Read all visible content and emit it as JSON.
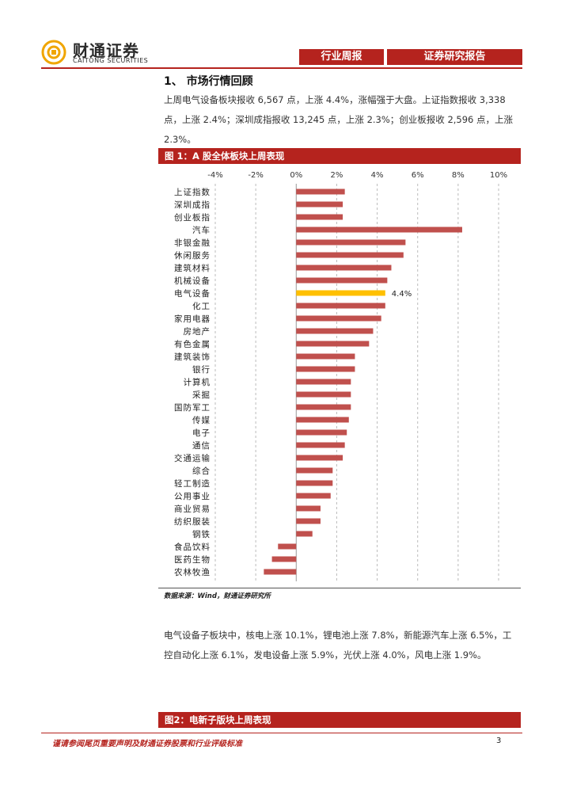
{
  "header": {
    "brand_cn": "财通证券",
    "brand_en": "CAITONG SECURITIES",
    "tab_weekly": "行业周报",
    "tab_report": "证券研究报告"
  },
  "section": {
    "title": "1、 市场行情回顾",
    "para1": "上周电气设备板块报收 6,567 点，上涨 4.4%，涨幅强于大盘。上证指数报收 3,338 点，上涨 2.4%；深圳成指报收 13,245 点，上涨 2.3%；创业板报收 2,596 点，上涨 2.3%。",
    "para2": "电气设备子板块中，核电上涨 10.1%，锂电池上涨 7.8%，新能源汽车上涨 6.5%，工控自动化上涨 6.1%，发电设备上涨 5.9%，光伏上涨 4.0%，风电上涨 1.9%。"
  },
  "figure1": {
    "title": "图 1：A 股全体板块上周表现",
    "source": "数据来源：Wind，财通证券研究所"
  },
  "figure2": {
    "title": "图2：电新子版块上周表现"
  },
  "footer": {
    "note": "谨请参阅尾页重要声明及财通证券股票和行业评级标准",
    "page": "3"
  },
  "colors": {
    "brand_red": "#b5231e",
    "bar": "#c0504d",
    "highlight": "#ffc000"
  },
  "chart_data": {
    "type": "bar",
    "orientation": "horizontal",
    "title": "图 1：A 股全体板块上周表现",
    "xlim": [
      -4,
      10
    ],
    "ticks": [
      -4,
      -2,
      0,
      2,
      4,
      6,
      8,
      10
    ],
    "tick_suffix": "%",
    "highlight": "电气设备",
    "highlight_label": "4.4%",
    "categories": [
      "上证指数",
      "深圳成指",
      "创业板指",
      "汽车",
      "非银金融",
      "休闲服务",
      "建筑材料",
      "机械设备",
      "电气设备",
      "化工",
      "家用电器",
      "房地产",
      "有色金属",
      "建筑装饰",
      "银行",
      "计算机",
      "采掘",
      "国防军工",
      "传媒",
      "电子",
      "通信",
      "交通运输",
      "综合",
      "轻工制造",
      "公用事业",
      "商业贸易",
      "纺织服装",
      "钢铁",
      "食品饮料",
      "医药生物",
      "农林牧渔"
    ],
    "values": [
      2.4,
      2.3,
      2.3,
      8.2,
      5.4,
      5.3,
      4.7,
      4.5,
      4.4,
      4.4,
      4.2,
      3.8,
      3.6,
      2.9,
      2.9,
      2.7,
      2.7,
      2.7,
      2.6,
      2.5,
      2.4,
      2.3,
      1.8,
      1.8,
      1.7,
      1.2,
      1.2,
      0.8,
      -0.9,
      -1.2,
      -1.6
    ]
  }
}
